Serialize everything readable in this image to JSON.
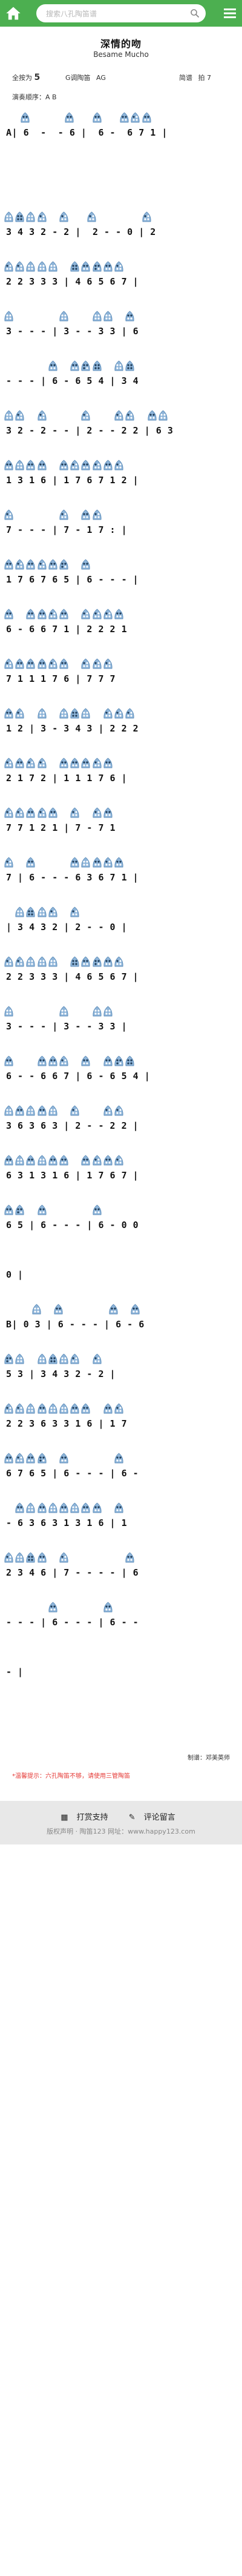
{
  "header": {
    "search_placeholder": "搜索八孔陶笛谱",
    "colors": {
      "bar": "#4caf50"
    }
  },
  "song": {
    "title": "深情的吻",
    "subtitle": "Besame Mucho",
    "instrument_label": "全按为",
    "instrument_value": "5",
    "key_label": "G调陶笛",
    "key_value": "AG",
    "tempo_label": "简谱",
    "beat_label": "拍",
    "beat_value": "7",
    "order_label": "演奏顺序",
    "order_value": "A B"
  },
  "score": {
    "rows": [
      "A| 6  -  - 6 |  6 -  6 7 1 |",
      "                          ",
      "3 4 3 2 - 2 |  2 - - 0 | 2",
      "2 2 3 3 3 | 4 6 5 6 7 |",
      "3 - - - | 3 - - 3 3 | 6",
      "- - - | 6 - 6 5 4 | 3 4",
      "3 2 - 2 - - | 2 - - 2 2 | 6 3",
      "1 3 1 6 | 1 7 6 7 1 2 |",
      "7 - - - | 7 - 1 7 : |",
      "1 7 6 7 6 5 | 6 - - - |",
      "6 - 6 6 7 1 | 2 2 2 1",
      "7 1 1 1 7 6 | 7 7 7",
      "1 2 | 3 - 3 4 3 | 2 2 2",
      "2 1 7 2 | 1 1 1 7 6 |",
      "7 7 1 2 1 | 7 - 7 1",
      "7 | 6 - - - 6 3 6 7 1 |",
      "| 3 4 3 2 | 2 - - 0 |",
      "2 2 3 3 3 | 4 6 5 6 7 |",
      "3 - - - | 3 - - 3 3 |",
      "6 - - 6 6 7 | 6 - 6 5 4 |",
      "3 6 3 6 3 | 2 - - 2 2 |",
      "6 3 1 3 1 6 | 1 7 6 7 |",
      "6 5 | 6 - - - | 6 - 0 0",
      "0 |",
      "B| 0 3 | 6 - - - | 6 - 6",
      "5 3 | 3 4 3 2 - 2 |",
      "2 2 3 6 3 3 1 6 | 1 7",
      "6 7 6 5 | 6 - - - | 6 -",
      "- 6 3 6 3 1 3 1 6 | 1",
      "2 3 4 6 | 7 - - - - | 6",
      "- - - | 6 - - - | 6 - -",
      "- |"
    ]
  },
  "footer": {
    "credits_label": "制谱：",
    "credits_value": "邓美英师",
    "tip": "*温馨提示：六孔陶笛不够，请使用三管陶笛",
    "reward_label": "打赏支持",
    "comment_label": "评论留言",
    "copyright": "版权声明 · 陶笛123 网址：www.happy123.com"
  }
}
